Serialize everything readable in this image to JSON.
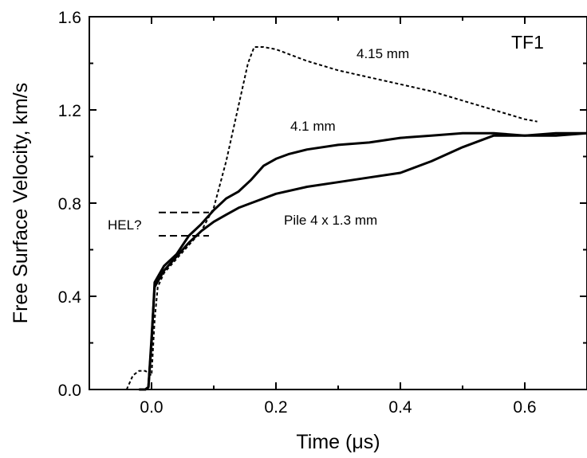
{
  "chart_data": {
    "type": "line",
    "title": "",
    "xlabel": "Time (μs)",
    "ylabel": "Free Surface Velocity, km/s",
    "xlim": [
      -0.1,
      0.7
    ],
    "ylim": [
      0.0,
      1.6
    ],
    "x_ticks": [
      "0.0",
      "0.2",
      "0.4",
      "0.6"
    ],
    "y_ticks": [
      "0.0",
      "0.4",
      "0.8",
      "1.2",
      "1.6"
    ],
    "grid": false,
    "annotations": {
      "tag": "TF1",
      "hel": "HEL?",
      "label_415": "4.15 mm",
      "label_41": "4.1 mm",
      "label_pile": "Pile 4 x 1.3 mm"
    },
    "hel_levels": [
      0.76,
      0.66
    ],
    "series": [
      {
        "name": "4.15 mm",
        "style": "dashed",
        "x": [
          -0.04,
          -0.03,
          -0.02,
          -0.01,
          0.0,
          0.005,
          0.01,
          0.02,
          0.04,
          0.06,
          0.08,
          0.1,
          0.12,
          0.14,
          0.155,
          0.165,
          0.18,
          0.2,
          0.25,
          0.3,
          0.35,
          0.4,
          0.45,
          0.5,
          0.55,
          0.6,
          0.62
        ],
        "y": [
          0.0,
          0.06,
          0.08,
          0.08,
          0.06,
          0.3,
          0.44,
          0.5,
          0.56,
          0.62,
          0.68,
          0.78,
          0.98,
          1.22,
          1.4,
          1.47,
          1.47,
          1.46,
          1.41,
          1.37,
          1.34,
          1.31,
          1.28,
          1.24,
          1.2,
          1.16,
          1.15
        ]
      },
      {
        "name": "4.1 mm",
        "style": "solid",
        "x": [
          -0.02,
          -0.01,
          -0.005,
          0.0,
          0.005,
          0.02,
          0.04,
          0.06,
          0.08,
          0.1,
          0.12,
          0.14,
          0.16,
          0.18,
          0.2,
          0.22,
          0.25,
          0.3,
          0.35,
          0.4,
          0.45,
          0.5,
          0.55,
          0.6,
          0.65,
          0.7
        ],
        "y": [
          0.0,
          0.0,
          0.01,
          0.2,
          0.46,
          0.53,
          0.58,
          0.66,
          0.71,
          0.77,
          0.82,
          0.85,
          0.9,
          0.96,
          0.99,
          1.01,
          1.03,
          1.05,
          1.06,
          1.08,
          1.09,
          1.1,
          1.1,
          1.09,
          1.1,
          1.1
        ]
      },
      {
        "name": "Pile 4 x 1.3 mm",
        "style": "solid",
        "x": [
          -0.02,
          -0.01,
          -0.005,
          0.0,
          0.005,
          0.02,
          0.04,
          0.06,
          0.08,
          0.1,
          0.12,
          0.14,
          0.16,
          0.2,
          0.25,
          0.3,
          0.35,
          0.4,
          0.45,
          0.5,
          0.55,
          0.6,
          0.65,
          0.7
        ],
        "y": [
          0.0,
          0.0,
          0.01,
          0.22,
          0.44,
          0.51,
          0.57,
          0.63,
          0.68,
          0.72,
          0.75,
          0.78,
          0.8,
          0.84,
          0.87,
          0.89,
          0.91,
          0.93,
          0.98,
          1.04,
          1.09,
          1.09,
          1.09,
          1.1
        ]
      }
    ]
  }
}
